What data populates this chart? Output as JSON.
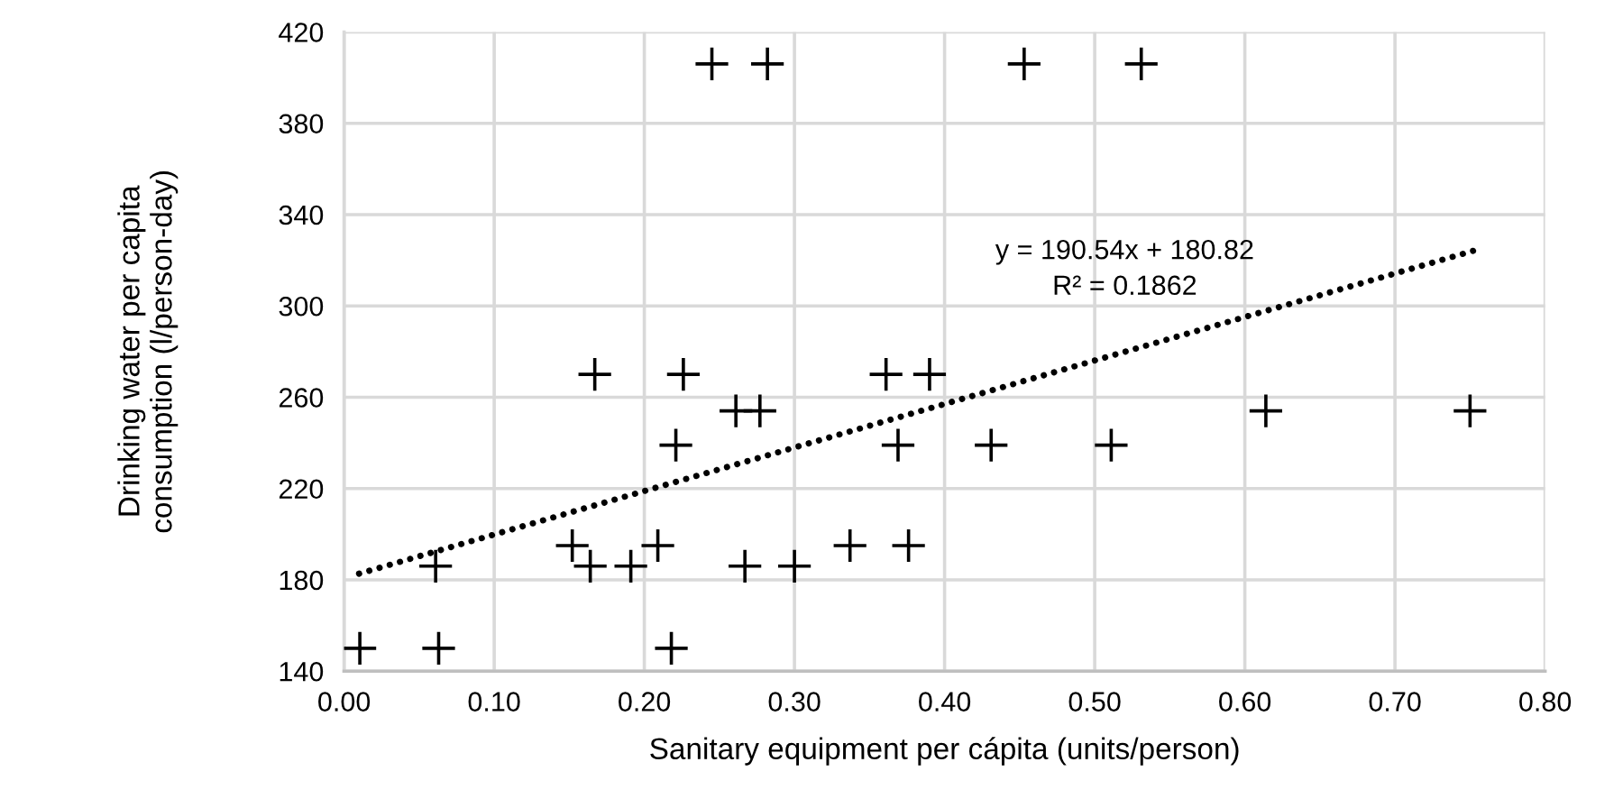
{
  "chart_data": {
    "type": "scatter",
    "xlabel": "Sanitary equipment per cápita (units/person)",
    "ylabel": "Drinking water per capita\nconsumption (l/person-day)",
    "series": [
      {
        "color": "#000000",
        "marker": "cross",
        "x": [
          0.0105,
          0.061,
          0.063,
          0.152,
          0.164,
          0.167,
          0.191,
          0.209,
          0.218,
          0.221,
          0.226,
          0.245,
          0.261,
          0.267,
          0.277,
          0.282,
          0.3,
          0.337,
          0.361,
          0.369,
          0.376,
          0.39,
          0.431,
          0.453,
          0.511,
          0.531,
          0.614,
          0.75
        ],
        "values": [
          150,
          186,
          150,
          195,
          186,
          270,
          186,
          195,
          150,
          239,
          270,
          406,
          254,
          186,
          254,
          406,
          186,
          195,
          270,
          239,
          195,
          270,
          239,
          406,
          239,
          406,
          254,
          254
        ]
      },
      {
        "type": "line",
        "color": "#000000",
        "line_style": "dotted",
        "x": [
          0.01,
          0.752
        ],
        "values": [
          182.7,
          324.1
        ]
      }
    ],
    "annotations": [
      "y = 190.54x + 180.82\nR² = 0.1862"
    ],
    "xlim": [
      0,
      0.8
    ],
    "ylim": [
      140,
      420
    ],
    "xticks": [
      {
        "value": 0,
        "label": "0.00"
      },
      {
        "value": 0.1,
        "label": "0.10"
      },
      {
        "value": 0.2,
        "label": "0.20"
      },
      {
        "value": 0.3,
        "label": "0.30"
      },
      {
        "value": 0.4,
        "label": "0.40"
      },
      {
        "value": 0.5,
        "label": "0.50"
      },
      {
        "value": 0.6,
        "label": "0.60"
      },
      {
        "value": 0.7,
        "label": "0.70"
      },
      {
        "value": 0.8,
        "label": "0.80"
      }
    ],
    "yticks": [
      140,
      180,
      220,
      260,
      300,
      340,
      380,
      420
    ],
    "grid": true,
    "legend": false
  }
}
